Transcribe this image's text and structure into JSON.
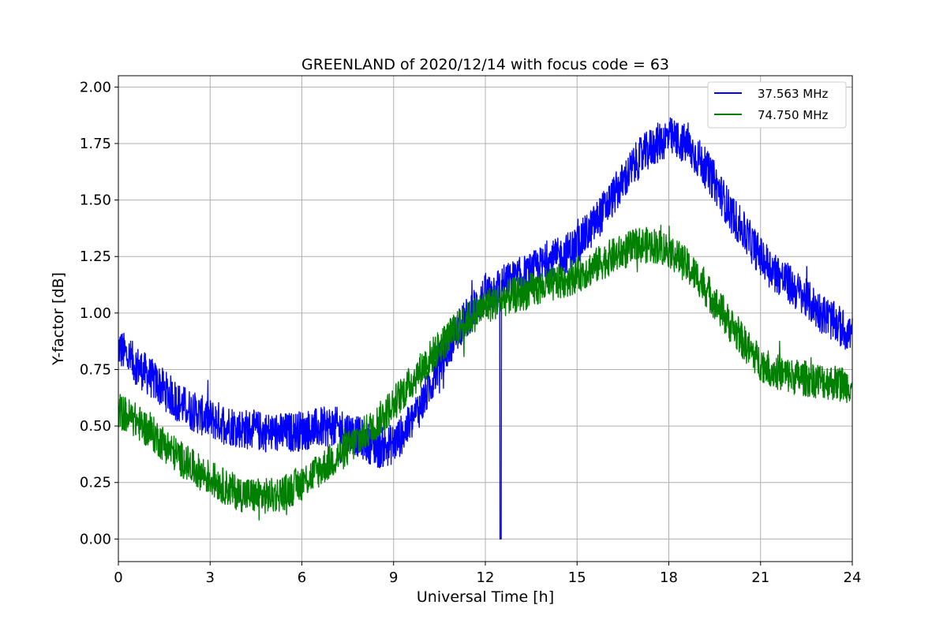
{
  "chart_data": {
    "type": "line",
    "title": "GREENLAND of 2020/12/14 with focus code = 63",
    "xlabel": "Universal Time [h]",
    "ylabel": "Y-factor [dB]",
    "xlim": [
      0,
      24
    ],
    "ylim": [
      -0.1,
      2.05
    ],
    "xticks": [
      0,
      3,
      6,
      9,
      12,
      15,
      18,
      21,
      24
    ],
    "yticks": [
      0.0,
      0.25,
      0.5,
      0.75,
      1.0,
      1.25,
      1.5,
      1.75,
      2.0
    ],
    "ytick_labels": [
      "0.00",
      "0.25",
      "0.50",
      "0.75",
      "1.00",
      "1.25",
      "1.50",
      "1.75",
      "2.00"
    ],
    "grid": true,
    "legend_position": "top-right",
    "series": [
      {
        "name": "37.563 MHz",
        "color": "#0000ff",
        "x": [
          0,
          0.5,
          1,
          1.5,
          2,
          2.5,
          3,
          3.5,
          4,
          4.5,
          5,
          5.5,
          6,
          6.5,
          7,
          7.5,
          8,
          8.5,
          9,
          9.5,
          10,
          10.5,
          11,
          11.5,
          12,
          12.5,
          13,
          13.5,
          14,
          14.5,
          15,
          15.5,
          16,
          16.5,
          17,
          17.5,
          18,
          18.5,
          19,
          19.5,
          20,
          20.5,
          21,
          21.5,
          22,
          22.5,
          23,
          23.5,
          24
        ],
        "y": [
          0.85,
          0.78,
          0.72,
          0.66,
          0.6,
          0.56,
          0.53,
          0.51,
          0.49,
          0.48,
          0.47,
          0.47,
          0.48,
          0.49,
          0.5,
          0.48,
          0.44,
          0.4,
          0.42,
          0.5,
          0.62,
          0.78,
          0.9,
          1.0,
          1.08,
          1.12,
          1.15,
          1.18,
          1.22,
          1.25,
          1.3,
          1.38,
          1.48,
          1.58,
          1.68,
          1.74,
          1.78,
          1.75,
          1.68,
          1.58,
          1.45,
          1.35,
          1.25,
          1.18,
          1.12,
          1.06,
          1.0,
          0.95,
          0.9
        ],
        "noise": 0.09
      },
      {
        "name": "74.750 MHz",
        "color": "#008000",
        "x": [
          0,
          0.5,
          1,
          1.5,
          2,
          2.5,
          3,
          3.5,
          4,
          4.5,
          5,
          5.5,
          6,
          6.5,
          7,
          7.5,
          8,
          8.5,
          9,
          9.5,
          10,
          10.5,
          11,
          11.5,
          12,
          12.5,
          13,
          13.5,
          14,
          14.5,
          15,
          15.5,
          16,
          16.5,
          17,
          17.5,
          18,
          18.5,
          19,
          19.5,
          20,
          20.5,
          21,
          21.5,
          22,
          22.5,
          23,
          23.5,
          24
        ],
        "y": [
          0.57,
          0.53,
          0.48,
          0.42,
          0.36,
          0.31,
          0.27,
          0.23,
          0.2,
          0.19,
          0.19,
          0.21,
          0.25,
          0.3,
          0.35,
          0.4,
          0.46,
          0.52,
          0.6,
          0.68,
          0.77,
          0.85,
          0.92,
          0.98,
          1.03,
          1.06,
          1.08,
          1.1,
          1.12,
          1.14,
          1.17,
          1.2,
          1.24,
          1.27,
          1.3,
          1.3,
          1.28,
          1.22,
          1.15,
          1.05,
          0.95,
          0.86,
          0.78,
          0.74,
          0.72,
          0.71,
          0.7,
          0.69,
          0.68
        ],
        "noise": 0.08
      }
    ],
    "annotations": [
      {
        "series": "37.563 MHz",
        "x": 12.5,
        "y": 0.0,
        "note": "dropout spike"
      }
    ]
  }
}
